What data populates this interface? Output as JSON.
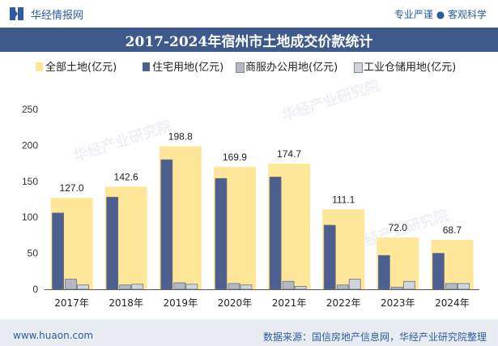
{
  "header": {
    "site_name": "华经情报网",
    "tagline": "专业严谨 ● 客观科学"
  },
  "title": "2017-2024年宿州市土地成交价款统计",
  "watermark": "华经产业研究院",
  "footer": {
    "url": "www.huaon.com",
    "source": "数据来源：国信房地产信息网，华经产业研究院整理"
  },
  "colors": {
    "brand": "#2d5aa0",
    "title_bg": "#3e5a8c",
    "series": [
      "#ffe79a",
      "#4d5f8e",
      "#b3b8c4",
      "#d0d4dc"
    ]
  },
  "chart_data": {
    "type": "bar",
    "categories": [
      "2017年",
      "2018年",
      "2019年",
      "2020年",
      "2021年",
      "2022年",
      "2023年",
      "2024年"
    ],
    "series": [
      {
        "name": "全部土地(亿元)",
        "values": [
          127.0,
          142.6,
          198.8,
          169.9,
          174.7,
          111.1,
          72.0,
          68.7
        ],
        "labels": [
          "127.0",
          "142.6",
          "198.8",
          "169.9",
          "174.7",
          "111.1",
          "72.0",
          "68.7"
        ]
      },
      {
        "name": "住宅用地(亿元)",
        "values": [
          106,
          128,
          180,
          154,
          156,
          89,
          47,
          50
        ]
      },
      {
        "name": "商服办公用地(亿元)",
        "values": [
          14,
          6,
          9,
          8,
          11,
          6,
          3,
          8
        ]
      },
      {
        "name": "工业仓储用地(亿元)",
        "values": [
          6,
          7,
          7,
          6,
          4,
          14,
          11,
          8
        ]
      }
    ],
    "y_ticks": [
      "0",
      "50",
      "100",
      "150",
      "200",
      "250"
    ],
    "ylim": [
      0,
      250
    ],
    "grid": false,
    "legend_position": "top"
  }
}
